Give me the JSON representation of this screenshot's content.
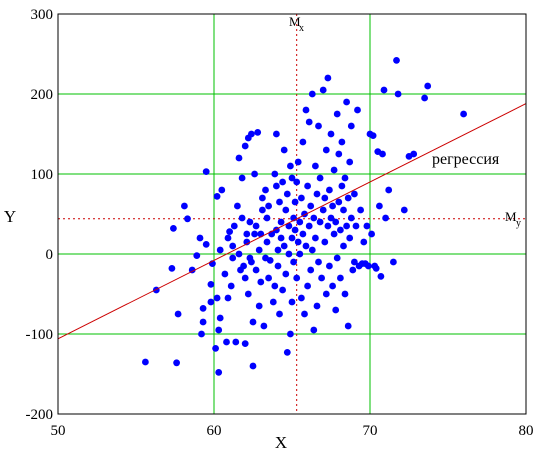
{
  "chart_data": {
    "type": "scatter",
    "xlabel": "X",
    "ylabel": "Y",
    "xlim": [
      50,
      80
    ],
    "ylim": [
      -200,
      300
    ],
    "xticks": [
      50,
      60,
      70,
      80
    ],
    "yticks": [
      -200,
      -100,
      0,
      100,
      200,
      300
    ],
    "grid": true,
    "point_color": "#0000ff",
    "grid_color": "#00c000",
    "regression": {
      "label": "регрессия",
      "color": "#cc0000",
      "x": [
        50,
        80
      ],
      "y": [
        -106,
        188
      ]
    },
    "mean_lines": {
      "color": "#cc0000",
      "mx": {
        "label": "M",
        "sub": "x",
        "value": 65.3
      },
      "my": {
        "label": "M",
        "sub": "y",
        "value": 44
      }
    },
    "points": [
      [
        55.6,
        -135
      ],
      [
        56.3,
        -45
      ],
      [
        57.3,
        -18
      ],
      [
        57.4,
        32
      ],
      [
        57.6,
        -136
      ],
      [
        57.7,
        -75
      ],
      [
        58.1,
        60
      ],
      [
        58.3,
        44
      ],
      [
        58.6,
        -20
      ],
      [
        58.9,
        -2
      ],
      [
        59.1,
        20
      ],
      [
        59.2,
        -100
      ],
      [
        59.3,
        -85
      ],
      [
        59.3,
        -68
      ],
      [
        59.5,
        12
      ],
      [
        59.5,
        103
      ],
      [
        59.8,
        -60
      ],
      [
        59.8,
        -38
      ],
      [
        59.9,
        -12
      ],
      [
        60.1,
        -118
      ],
      [
        60.2,
        -55
      ],
      [
        60.2,
        72
      ],
      [
        60.3,
        -95
      ],
      [
        60.3,
        -148
      ],
      [
        60.4,
        -80
      ],
      [
        60.4,
        5
      ],
      [
        60.5,
        80
      ],
      [
        60.7,
        -25
      ],
      [
        60.8,
        -110
      ],
      [
        60.9,
        -55
      ],
      [
        60.9,
        20
      ],
      [
        61.0,
        28
      ],
      [
        61.1,
        -40
      ],
      [
        61.2,
        -5
      ],
      [
        61.2,
        10
      ],
      [
        61.3,
        35
      ],
      [
        61.4,
        -110
      ],
      [
        61.5,
        60
      ],
      [
        61.6,
        0
      ],
      [
        61.6,
        120
      ],
      [
        61.7,
        -20
      ],
      [
        61.8,
        45
      ],
      [
        61.8,
        95
      ],
      [
        61.9,
        -15
      ],
      [
        62.0,
        -112
      ],
      [
        62.0,
        -30
      ],
      [
        62.0,
        135
      ],
      [
        62.1,
        15
      ],
      [
        62.1,
        25
      ],
      [
        62.2,
        -50
      ],
      [
        62.2,
        145
      ],
      [
        62.3,
        40
      ],
      [
        62.3,
        -5
      ],
      [
        62.4,
        -10
      ],
      [
        62.4,
        150
      ],
      [
        62.5,
        -85
      ],
      [
        62.5,
        -140
      ],
      [
        62.6,
        25
      ],
      [
        62.6,
        100
      ],
      [
        62.7,
        35
      ],
      [
        62.7,
        -20
      ],
      [
        62.8,
        152
      ],
      [
        62.9,
        -65
      ],
      [
        62.9,
        5
      ],
      [
        63.0,
        -35
      ],
      [
        63.0,
        25
      ],
      [
        63.1,
        55
      ],
      [
        63.1,
        70
      ],
      [
        63.2,
        -90
      ],
      [
        63.3,
        -5
      ],
      [
        63.3,
        80
      ],
      [
        63.4,
        15
      ],
      [
        63.4,
        45
      ],
      [
        63.5,
        -30
      ],
      [
        63.5,
        60
      ],
      [
        63.6,
        -8
      ],
      [
        63.7,
        25
      ],
      [
        63.8,
        -60
      ],
      [
        63.9,
        100
      ],
      [
        63.9,
        -40
      ],
      [
        64.0,
        150
      ],
      [
        64.0,
        30
      ],
      [
        64.0,
        85
      ],
      [
        64.1,
        -15
      ],
      [
        64.1,
        5
      ],
      [
        64.2,
        65
      ],
      [
        64.2,
        -75
      ],
      [
        64.3,
        40
      ],
      [
        64.3,
        20
      ],
      [
        64.4,
        90
      ],
      [
        64.4,
        -45
      ],
      [
        64.5,
        130
      ],
      [
        64.5,
        10
      ],
      [
        64.6,
        55
      ],
      [
        64.6,
        -25
      ],
      [
        64.7,
        -123
      ],
      [
        64.7,
        75
      ],
      [
        64.8,
        0
      ],
      [
        64.8,
        35
      ],
      [
        64.9,
        110
      ],
      [
        64.9,
        -100
      ],
      [
        65.0,
        -60
      ],
      [
        65.0,
        20
      ],
      [
        65.0,
        95
      ],
      [
        65.1,
        45
      ],
      [
        65.1,
        -10
      ],
      [
        65.2,
        30
      ],
      [
        65.2,
        65
      ],
      [
        65.3,
        -30
      ],
      [
        65.3,
        90
      ],
      [
        65.4,
        15
      ],
      [
        65.4,
        115
      ],
      [
        65.5,
        0
      ],
      [
        65.5,
        40
      ],
      [
        65.6,
        -55
      ],
      [
        65.6,
        70
      ],
      [
        65.7,
        25
      ],
      [
        65.7,
        140
      ],
      [
        65.8,
        -75
      ],
      [
        65.8,
        50
      ],
      [
        65.9,
        180
      ],
      [
        65.9,
        10
      ],
      [
        66.0,
        -40
      ],
      [
        66.0,
        85
      ],
      [
        66.1,
        35
      ],
      [
        66.1,
        165
      ],
      [
        66.2,
        -20
      ],
      [
        66.2,
        60
      ],
      [
        66.3,
        200
      ],
      [
        66.3,
        5
      ],
      [
        66.4,
        45
      ],
      [
        66.4,
        -95
      ],
      [
        66.5,
        110
      ],
      [
        66.5,
        20
      ],
      [
        66.6,
        75
      ],
      [
        66.6,
        -65
      ],
      [
        66.7,
        160
      ],
      [
        66.7,
        -10
      ],
      [
        66.8,
        40
      ],
      [
        66.8,
        95
      ],
      [
        66.9,
        -30
      ],
      [
        67.0,
        55
      ],
      [
        67.0,
        205
      ],
      [
        67.1,
        15
      ],
      [
        67.1,
        70
      ],
      [
        67.2,
        -50
      ],
      [
        67.2,
        130
      ],
      [
        67.3,
        220
      ],
      [
        67.3,
        35
      ],
      [
        67.4,
        -15
      ],
      [
        67.4,
        80
      ],
      [
        67.5,
        45
      ],
      [
        67.5,
        150
      ],
      [
        67.6,
        -40
      ],
      [
        67.6,
        60
      ],
      [
        67.7,
        25
      ],
      [
        67.7,
        105
      ],
      [
        67.8,
        -70
      ],
      [
        67.8,
        40
      ],
      [
        67.9,
        175
      ],
      [
        67.9,
        -5
      ],
      [
        68.0,
        65
      ],
      [
        68.0,
        125
      ],
      [
        68.1,
        30
      ],
      [
        68.1,
        -30
      ],
      [
        68.2,
        85
      ],
      [
        68.2,
        140
      ],
      [
        68.3,
        10
      ],
      [
        68.3,
        55
      ],
      [
        68.4,
        -50
      ],
      [
        68.4,
        95
      ],
      [
        68.5,
        190
      ],
      [
        68.5,
        35
      ],
      [
        68.6,
        -90
      ],
      [
        68.6,
        70
      ],
      [
        68.7,
        115
      ],
      [
        68.7,
        20
      ],
      [
        68.8,
        160
      ],
      [
        68.8,
        45
      ],
      [
        68.9,
        -20
      ],
      [
        69.0,
        75
      ],
      [
        69.0,
        -10
      ],
      [
        69.1,
        35
      ],
      [
        69.2,
        180
      ],
      [
        69.3,
        -15
      ],
      [
        69.4,
        55
      ],
      [
        69.5,
        -12
      ],
      [
        69.6,
        15
      ],
      [
        69.7,
        -12
      ],
      [
        69.8,
        35
      ],
      [
        69.9,
        -15
      ],
      [
        70.0,
        150
      ],
      [
        70.1,
        25
      ],
      [
        70.2,
        148
      ],
      [
        70.3,
        -15
      ],
      [
        70.4,
        -18
      ],
      [
        70.5,
        128
      ],
      [
        70.6,
        60
      ],
      [
        70.7,
        -28
      ],
      [
        70.8,
        125
      ],
      [
        70.9,
        205
      ],
      [
        71.0,
        45
      ],
      [
        71.2,
        80
      ],
      [
        71.5,
        -10
      ],
      [
        71.7,
        242
      ],
      [
        71.8,
        200
      ],
      [
        72.2,
        55
      ],
      [
        72.5,
        122
      ],
      [
        72.8,
        125
      ],
      [
        73.5,
        195
      ],
      [
        73.7,
        210
      ],
      [
        76.0,
        175
      ]
    ]
  }
}
